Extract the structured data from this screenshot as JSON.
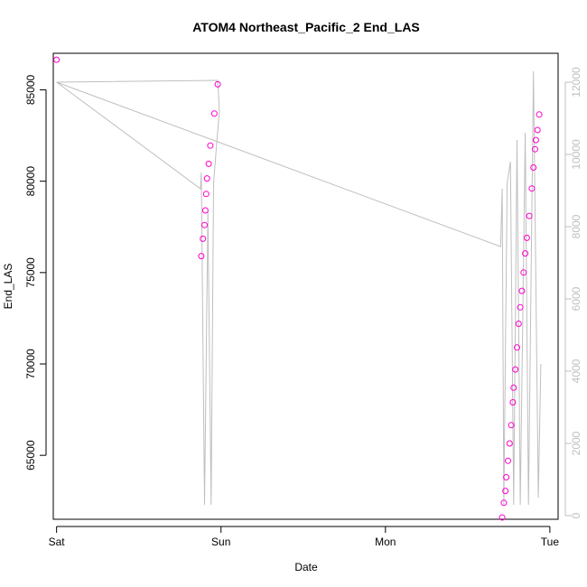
{
  "chart_data": {
    "type": "line",
    "title": "ATOM4 Northeast_Pacific_2 End_LAS",
    "xlabel": "Date",
    "ylabel": "End_LAS",
    "x_ticks": [
      "Sat",
      "Sun",
      "Mon",
      "Tue"
    ],
    "xlim": [
      -0.02,
      3.05
    ],
    "ylim": [
      61500,
      87000
    ],
    "y_ticks": [
      65000,
      70000,
      75000,
      80000,
      85000
    ],
    "y_tick_labels": [
      "65000",
      "70000",
      "75000",
      "80000",
      "85000"
    ],
    "y2lim": [
      -100,
      12800
    ],
    "y2_ticks": [
      0,
      2000,
      4000,
      6000,
      8000,
      10000,
      12000
    ],
    "y2_tick_labels": [
      "0",
      "2000",
      "4000",
      "6000",
      "8000",
      "10000",
      "12000"
    ],
    "grid": false,
    "legend": "none",
    "colors": {
      "points": "#ff00cc",
      "line": "#bfbfbf",
      "axis": "#000000",
      "right_axis": "#bfbfbf"
    },
    "series": [
      {
        "axis": "left",
        "style": "points",
        "points": [
          {
            "x": 0.0,
            "y": 86650
          },
          {
            "x": 0.88,
            "y": 75900
          },
          {
            "x": 0.89,
            "y": 76850
          },
          {
            "x": 0.9,
            "y": 77600
          },
          {
            "x": 0.905,
            "y": 78400
          },
          {
            "x": 0.91,
            "y": 79300
          },
          {
            "x": 0.915,
            "y": 80150
          },
          {
            "x": 0.925,
            "y": 80950
          },
          {
            "x": 0.935,
            "y": 81950
          },
          {
            "x": 0.96,
            "y": 83700
          },
          {
            "x": 0.98,
            "y": 85300
          },
          {
            "x": 2.71,
            "y": 61600
          },
          {
            "x": 2.72,
            "y": 62400
          },
          {
            "x": 2.73,
            "y": 63050
          },
          {
            "x": 2.735,
            "y": 63800
          },
          {
            "x": 2.745,
            "y": 64700
          },
          {
            "x": 2.755,
            "y": 65650
          },
          {
            "x": 2.765,
            "y": 66650
          },
          {
            "x": 2.775,
            "y": 67900
          },
          {
            "x": 2.78,
            "y": 68700
          },
          {
            "x": 2.79,
            "y": 69700
          },
          {
            "x": 2.8,
            "y": 70900
          },
          {
            "x": 2.81,
            "y": 72200
          },
          {
            "x": 2.82,
            "y": 73100
          },
          {
            "x": 2.83,
            "y": 74000
          },
          {
            "x": 2.84,
            "y": 75000
          },
          {
            "x": 2.85,
            "y": 76050
          },
          {
            "x": 2.86,
            "y": 76900
          },
          {
            "x": 2.875,
            "y": 78100
          },
          {
            "x": 2.89,
            "y": 79600
          },
          {
            "x": 2.9,
            "y": 80750
          },
          {
            "x": 2.91,
            "y": 81750
          },
          {
            "x": 2.915,
            "y": 82250
          },
          {
            "x": 2.925,
            "y": 82800
          },
          {
            "x": 2.935,
            "y": 83650
          }
        ]
      },
      {
        "axis": "right",
        "style": "line",
        "points": [
          {
            "x": 0.0,
            "y": 12000
          },
          {
            "x": 0.98,
            "y": 12050
          },
          {
            "x": 0.99,
            "y": 11200
          },
          {
            "x": 0.97,
            "y": 10100
          },
          {
            "x": 0.955,
            "y": 9200
          },
          {
            "x": 0.94,
            "y": 300
          },
          {
            "x": 0.92,
            "y": 8400
          },
          {
            "x": 0.9,
            "y": 300
          },
          {
            "x": 0.88,
            "y": 9500
          },
          {
            "x": 0.875,
            "y": 9050
          },
          {
            "x": 0.0,
            "y": 12000
          },
          {
            "x": 2.7,
            "y": 7450
          },
          {
            "x": 2.71,
            "y": 9050
          },
          {
            "x": 2.72,
            "y": 300
          },
          {
            "x": 2.74,
            "y": 9200
          },
          {
            "x": 2.76,
            "y": 9800
          },
          {
            "x": 2.78,
            "y": 300
          },
          {
            "x": 2.8,
            "y": 10400
          },
          {
            "x": 2.82,
            "y": 300
          },
          {
            "x": 2.85,
            "y": 10600
          },
          {
            "x": 2.87,
            "y": 300
          },
          {
            "x": 2.9,
            "y": 12300
          },
          {
            "x": 2.93,
            "y": 500
          },
          {
            "x": 2.945,
            "y": 4200
          }
        ]
      }
    ]
  }
}
